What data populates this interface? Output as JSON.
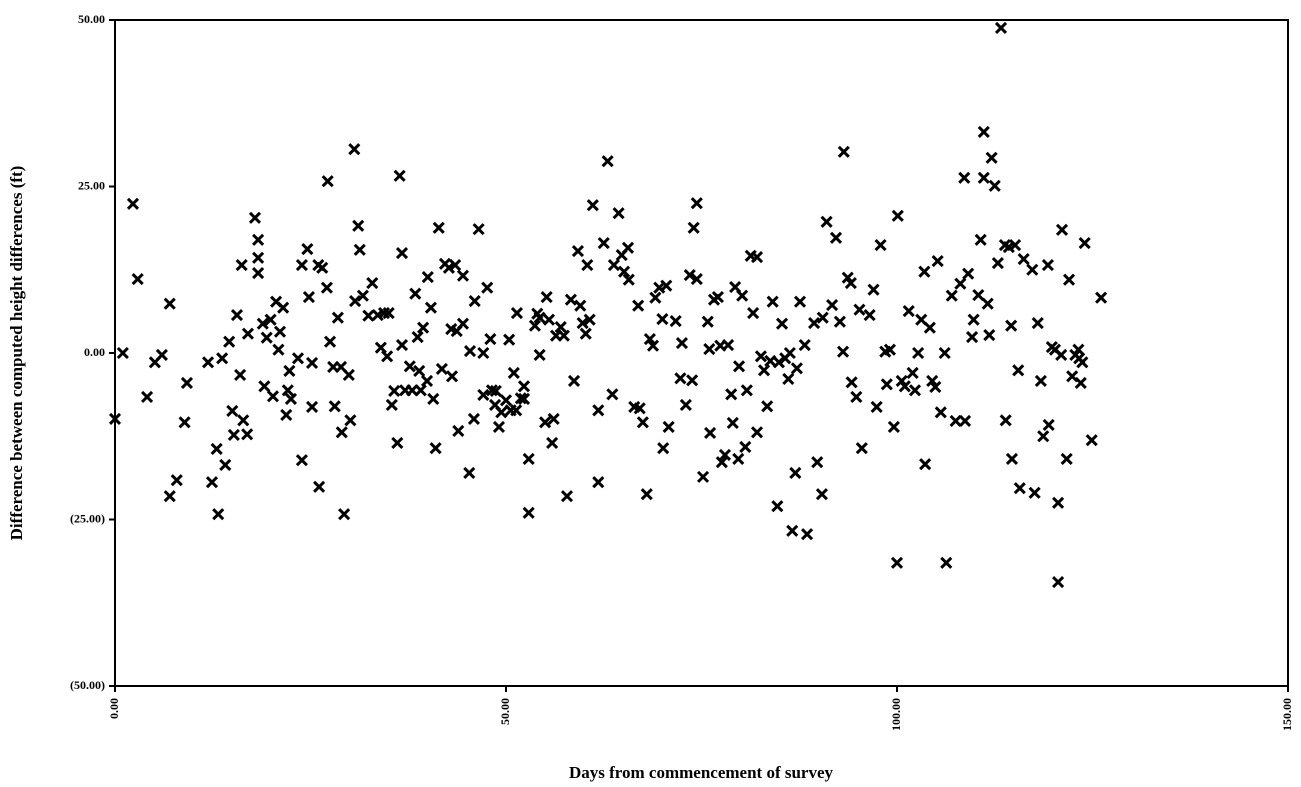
{
  "chart_data": {
    "type": "scatter",
    "xlabel": "Days from commencement of survey",
    "ylabel": "Difference between computed height differences (ft)",
    "xlim": [
      0,
      150
    ],
    "ylim": [
      -50,
      50
    ],
    "xticks": [
      {
        "value": 0,
        "label": "0.00"
      },
      {
        "value": 50,
        "label": "50.00"
      },
      {
        "value": 100,
        "label": "100.00"
      },
      {
        "value": 150,
        "label": "150.00"
      }
    ],
    "yticks": [
      {
        "value": -50,
        "label": "(50.00)"
      },
      {
        "value": -25,
        "label": "(25.00)"
      },
      {
        "value": 0,
        "label": "0.00"
      },
      {
        "value": 25,
        "label": "25.00"
      },
      {
        "value": 50,
        "label": "50.00"
      }
    ],
    "color": "#000000",
    "x": [
      0,
      1,
      2.3,
      2.9,
      4.1,
      5.1,
      6,
      7,
      7,
      7.9,
      9.2,
      8.9,
      11.9,
      12.4,
      13,
      13.2,
      13.7,
      14.1,
      14.6,
      15,
      15.2,
      15.6,
      16,
      16.2,
      16.4,
      16.9,
      17,
      17.9,
      18.3,
      18.3,
      18.3,
      18.9,
      19.1,
      19.4,
      19.9,
      20.2,
      20.6,
      20.9,
      21.1,
      21.5,
      21.9,
      22.1,
      22.3,
      22.5,
      23.4,
      23.9,
      23.9,
      24.6,
      24.8,
      25.2,
      25.2,
      26,
      26.1,
      26.5,
      27.1,
      27.2,
      27.5,
      27.9,
      28.1,
      28.5,
      28.9,
      29,
      29.3,
      29.9,
      30.1,
      30.6,
      30.7,
      31.1,
      31.3,
      31.7,
      32.4,
      32.9,
      33.6,
      34,
      34.4,
      34.8,
      35,
      35.4,
      35.7,
      36.1,
      36.4,
      36.7,
      36.7,
      37.1,
      37.7,
      38,
      38.4,
      38.7,
      38.9,
      39.1,
      39.4,
      39.9,
      40,
      40.4,
      40.7,
      41,
      41.4,
      41.8,
      42.2,
      42.7,
      43,
      43.1,
      43.5,
      43.7,
      43.9,
      44.5,
      44.5,
      45.3,
      45.4,
      45.9,
      46,
      46.5,
      47.1,
      47.1,
      47.6,
      48,
      48.2,
      48.6,
      48.7,
      49.1,
      49.4,
      50,
      50.4,
      50.6,
      51,
      51.3,
      51.4,
      51.9,
      52.3,
      52.3,
      52.9,
      52.9,
      53.7,
      54,
      54.3,
      54.3,
      55,
      55.2,
      55.5,
      55.9,
      56.1,
      56.4,
      57,
      57.4,
      57.8,
      58.3,
      58.7,
      59.2,
      59.5,
      59.8,
      60.2,
      60.4,
      60.7,
      61.1,
      61.8,
      61.8,
      62.5,
      63,
      63.6,
      63.8,
      64.4,
      64.8,
      65.1,
      65.6,
      65.7,
      66.4,
      66.9,
      67.1,
      67.5,
      68,
      68.4,
      68.8,
      69.1,
      69.6,
      70,
      70.1,
      70.5,
      70.8,
      71.7,
      72.3,
      72.5,
      73,
      73.5,
      73.8,
      74,
      74.4,
      74.4,
      75.2,
      75.8,
      76,
      76.1,
      76.6,
      77.1,
      77.4,
      77.6,
      78,
      78.4,
      78.8,
      79,
      79.3,
      79.7,
      79.8,
      80.2,
      80.6,
      80.8,
      81.3,
      81.6,
      82.1,
      82.1,
      82.6,
      83,
      83.4,
      83.8,
      84.1,
      84.7,
      84.9,
      85.3,
      85.7,
      86.1,
      86.3,
      86.6,
      87,
      87.2,
      87.6,
      88.2,
      88.5,
      89.4,
      89.8,
      90.4,
      90.5,
      91,
      91.7,
      92.2,
      92.7,
      93.1,
      93.2,
      93.7,
      94.1,
      94.2,
      94.8,
      95.2,
      95.5,
      96.5,
      97,
      97.4,
      97.9,
      98.5,
      98.7,
      99.1,
      99.6,
      100.1,
      100,
      100.6,
      101,
      101.5,
      102,
      102.3,
      102.7,
      103.1,
      103.5,
      103.6,
      104.2,
      104.5,
      104.9,
      105.2,
      105.6,
      106.1,
      106.3,
      107,
      107.5,
      108.1,
      108.6,
      108.7,
      109.1,
      109.6,
      109.8,
      110.4,
      110.7,
      111.1,
      111.1,
      111.6,
      111.8,
      112.1,
      112.5,
      112.9,
      113.3,
      113.8,
      113.9,
      114.3,
      114.6,
      114.7,
      115.1,
      115.5,
      115.7,
      116.2,
      117.3,
      117.6,
      118,
      118.4,
      118.7,
      119.3,
      119.4,
      119.8,
      120.2,
      120.6,
      120.6,
      121,
      121.1,
      121.7,
      122,
      122.4,
      122.8,
      123.2,
      123.3,
      123.5,
      123.7,
      124,
      124.9,
      126.1
    ],
    "y": [
      -9.9,
      0,
      22.4,
      11.1,
      -6.6,
      -1.4,
      -0.3,
      -21.5,
      7.4,
      -19.1,
      -4.5,
      -10.4,
      -1.4,
      -19.4,
      -14.4,
      -24.2,
      -0.8,
      -16.8,
      1.7,
      -8.7,
      -12.3,
      5.7,
      -3.3,
      13.2,
      -10.1,
      -12.2,
      2.9,
      20.3,
      17,
      14.3,
      12,
      4.4,
      -5,
      2.3,
      5,
      -6.5,
      7.7,
      0.5,
      3.2,
      6.8,
      -9.3,
      -5.6,
      -2.7,
      -6.9,
      -0.8,
      13.2,
      -16.1,
      15.6,
      8.4,
      -1.5,
      -8.1,
      13.2,
      -20.1,
      12.8,
      9.8,
      25.8,
      1.7,
      -2.1,
      -8,
      5.3,
      -2.1,
      -11.9,
      -24.2,
      -3.3,
      -10.1,
      30.6,
      7.8,
      19.1,
      15.5,
      8.6,
      5.6,
      10.5,
      5.7,
      0.8,
      6,
      -0.5,
      6,
      -7.8,
      -5.7,
      -13.5,
      26.6,
      15,
      1.2,
      -5.6,
      -2,
      -5.6,
      8.9,
      2.4,
      -2.7,
      -5.6,
      3.8,
      -4.2,
      11.4,
      6.8,
      -6.9,
      -14.3,
      18.8,
      -2.4,
      13.4,
      12.8,
      3.6,
      -3.5,
      13.2,
      3.3,
      -11.7,
      4.4,
      11.6,
      -18,
      0.3,
      -9.9,
      7.8,
      18.6,
      0,
      -6.3,
      9.8,
      2.1,
      -5.6,
      -7.8,
      -5.7,
      -11.1,
      -8.9,
      -7.1,
      2,
      -8.6,
      -3,
      -8.6,
      6,
      -6.8,
      -5,
      -6.9,
      -15.9,
      -24,
      4.1,
      5.9,
      5.3,
      -0.3,
      -10.4,
      8.4,
      5,
      -13.5,
      -9.9,
      2.6,
      3.9,
      2.6,
      -21.5,
      8,
      -4.2,
      15.3,
      7.1,
      4.5,
      2.9,
      13.2,
      5,
      22.2,
      -8.6,
      -19.4,
      16.5,
      28.8,
      -6.2,
      13.2,
      21,
      14.7,
      12.2,
      15.8,
      11,
      -8.1,
      7.1,
      -8.3,
      -10.4,
      -21.2,
      2.1,
      1.1,
      8.3,
      9.8,
      5.1,
      -14.3,
      10.1,
      -11.1,
      4.8,
      -3.8,
      1.5,
      -7.8,
      11.7,
      -4.1,
      18.8,
      22.5,
      11.1,
      -18.6,
      4.7,
      0.6,
      -12,
      8,
      8.4,
      1.1,
      -16.4,
      -15.3,
      1.2,
      -6.2,
      -10.5,
      9.9,
      -15.9,
      -2,
      8.6,
      -14.1,
      -5.6,
      14.6,
      6,
      14.4,
      -11.9,
      -0.5,
      -2.6,
      -8,
      -1.2,
      7.7,
      -23,
      -1.4,
      4.4,
      -0.8,
      -3.9,
      0,
      -26.7,
      -18,
      -2.3,
      7.7,
      1.2,
      -27.2,
      4.5,
      -16.4,
      -21.2,
      5.3,
      19.7,
      7.2,
      17.3,
      4.7,
      0.2,
      30.2,
      11.3,
      10.5,
      -4.4,
      -6.6,
      6.5,
      -14.3,
      5.7,
      9.5,
      -8.1,
      16.2,
      0.2,
      -4.7,
      0.5,
      -11.1,
      20.6,
      -31.5,
      -4.2,
      -5,
      6.3,
      -3,
      -5.6,
      0,
      5,
      12.2,
      -16.7,
      3.8,
      -4.2,
      -5.1,
      13.8,
      -8.9,
      0,
      -31.5,
      8.6,
      -10.2,
      10.4,
      26.3,
      -10.2,
      11.9,
      2.4,
      5,
      8.7,
      17,
      33.2,
      26.3,
      7.4,
      2.7,
      29.3,
      25.1,
      13.5,
      48.8,
      16.2,
      -10.1,
      15.9,
      4.1,
      -15.9,
      16.2,
      -2.6,
      -20.3,
      14.1,
      12.5,
      -21,
      4.5,
      -4.2,
      -12.5,
      13.2,
      -10.8,
      0.9,
      0.5,
      -22.5,
      -34.4,
      -0.3,
      18.5,
      -15.9,
      11,
      -3.5,
      -0.3,
      0.5,
      -0.8,
      -4.5,
      -1.4,
      16.5,
      -13.1,
      8.3
    ]
  }
}
